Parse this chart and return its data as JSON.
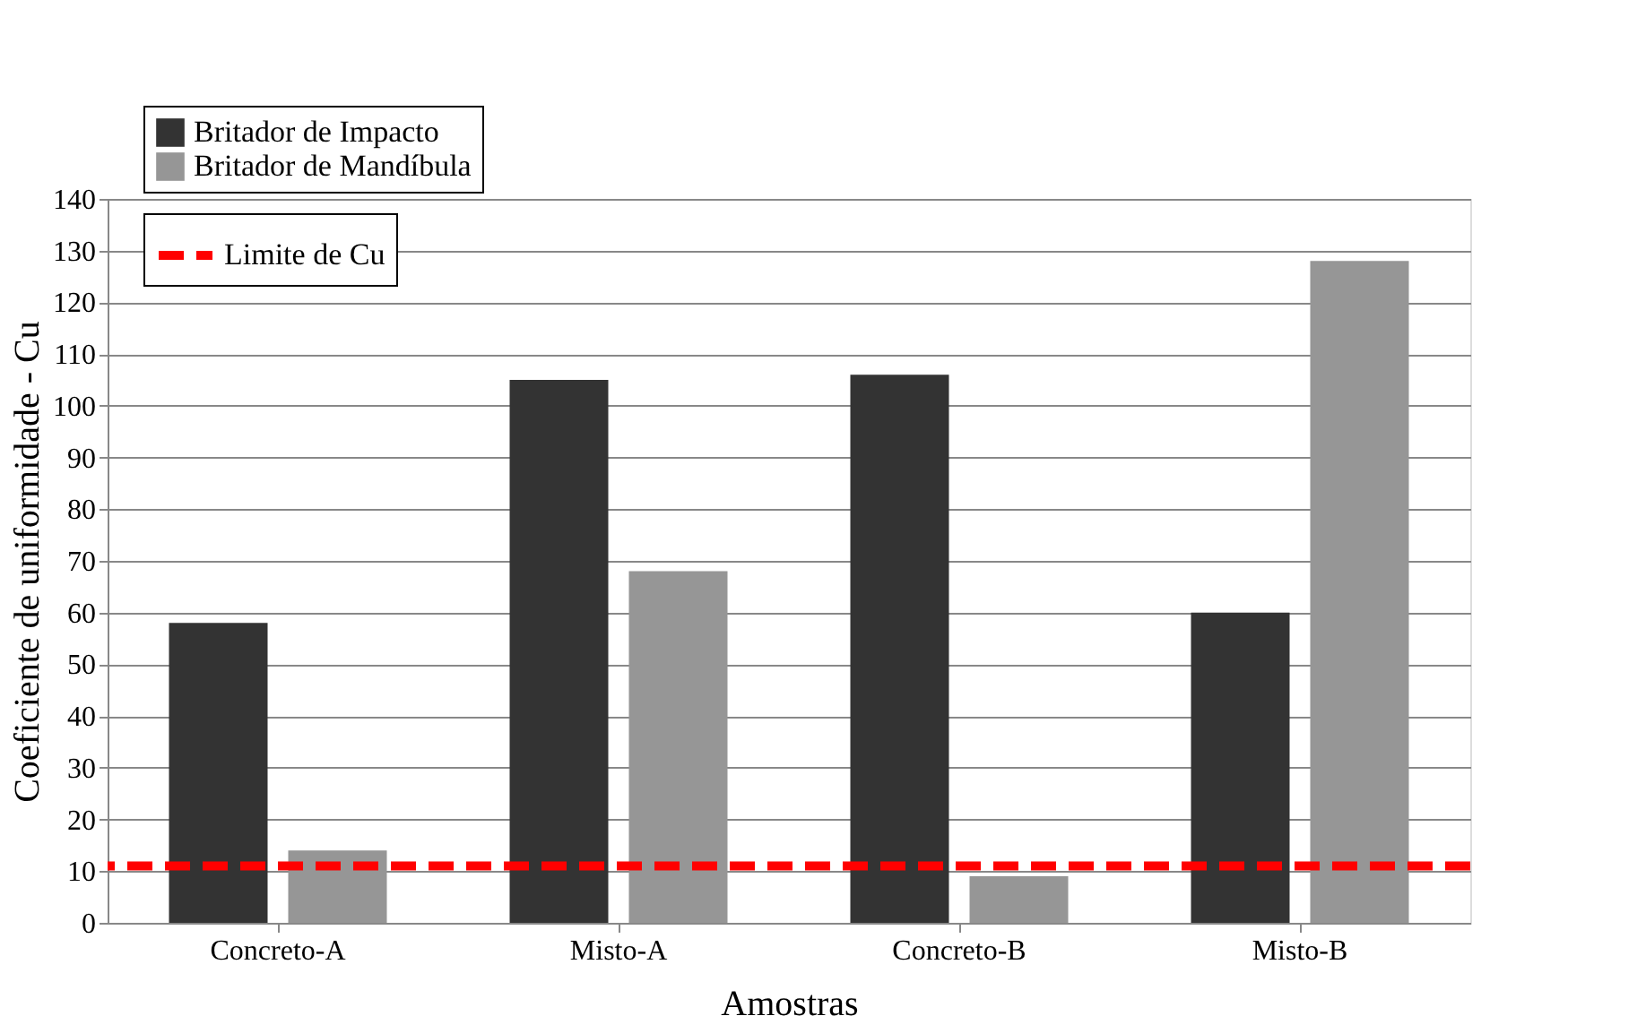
{
  "chart_data": {
    "type": "bar",
    "xlabel": "Amostras",
    "ylabel": "Coeficiente de uniformidade - Cu",
    "categories": [
      "Concreto-A",
      "Misto-A",
      "Concreto-B",
      "Misto-B"
    ],
    "series": [
      {
        "name": "Britador de Impacto",
        "color": "#333333",
        "values": [
          58,
          105,
          106,
          60
        ]
      },
      {
        "name": "Britador de Mandíbula",
        "color": "#969696",
        "values": [
          14,
          68,
          9,
          128
        ]
      }
    ],
    "ylim": [
      0,
      140
    ],
    "yticks": [
      0,
      10,
      20,
      30,
      40,
      50,
      60,
      70,
      80,
      90,
      100,
      110,
      120,
      130,
      140
    ],
    "grid": "y",
    "legend": "top left",
    "ref_lines": [
      {
        "axis": "y",
        "value": 11,
        "label": "Limite de Cu",
        "color": "#ff0000",
        "line_style": "dashed"
      }
    ]
  }
}
